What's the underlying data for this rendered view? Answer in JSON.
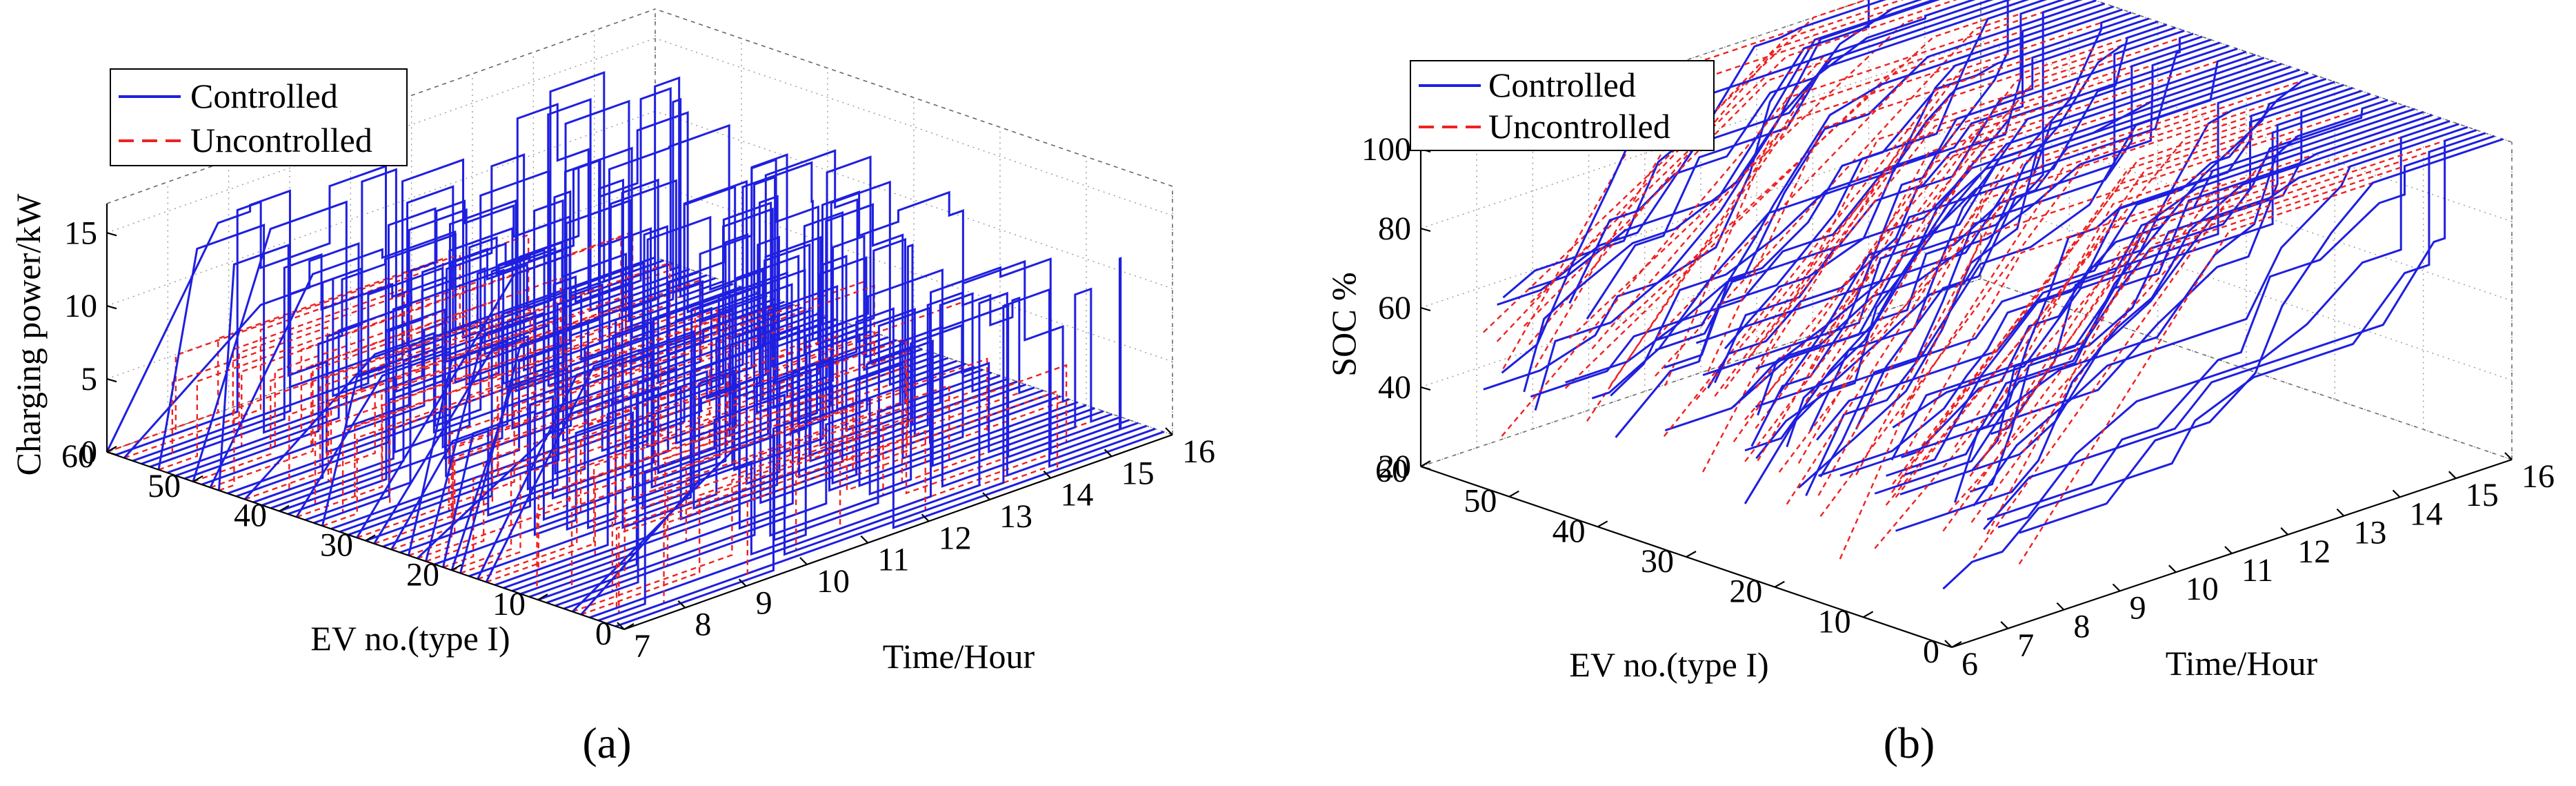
{
  "chart_data": [
    {
      "panel": "a",
      "type": "line",
      "subtype": "3d-waterfall",
      "caption": "(a)",
      "zlabel": "Charging power/kW",
      "xlabel": "EV no.(type I)",
      "ylabel": "Time/Hour",
      "ev_ticks": [
        "0",
        "10",
        "20",
        "30",
        "40",
        "50",
        "60"
      ],
      "time_ticks": [
        "7",
        "8",
        "9",
        "10",
        "11",
        "12",
        "13",
        "14",
        "15",
        "16"
      ],
      "z_ticks": [
        "0",
        "5",
        "10",
        "15"
      ],
      "ev_range": [
        0,
        60
      ],
      "time_range": [
        7,
        16
      ],
      "zlim": [
        0,
        17
      ],
      "legend": [
        "Controlled",
        "Uncontrolled"
      ],
      "legend_position": "top-left",
      "series_colors": {
        "Controlled": "#1f1fe0",
        "Uncontrolled": "#ee2222"
      },
      "series": [
        {
          "name": "Controlled",
          "style": "solid",
          "description": "Per-EV charging power profile under controlled charging; pulses of 5-15 kW at varying hours"
        },
        {
          "name": "Uncontrolled",
          "style": "dashed",
          "description": "Per-EV charging power profile under uncontrolled charging; constant ~5 kW blocks starting near arrival"
        }
      ]
    },
    {
      "panel": "b",
      "type": "line",
      "subtype": "3d-waterfall",
      "caption": "(b)",
      "zlabel": "SOC %",
      "xlabel": "EV no.(type I)",
      "ylabel": "Time/Hour",
      "ev_ticks": [
        "0",
        "10",
        "20",
        "30",
        "40",
        "50",
        "60"
      ],
      "time_ticks": [
        "6",
        "7",
        "8",
        "9",
        "10",
        "11",
        "12",
        "13",
        "14",
        "15",
        "16"
      ],
      "z_ticks": [
        "20",
        "40",
        "60",
        "80",
        "100"
      ],
      "ev_range": [
        0,
        60
      ],
      "time_range": [
        6,
        16
      ],
      "zlim": [
        20,
        100
      ],
      "legend": [
        "Controlled",
        "Uncontrolled"
      ],
      "legend_position": "top-left",
      "series_colors": {
        "Controlled": "#1f1fe0",
        "Uncontrolled": "#ee2222"
      },
      "series": [
        {
          "name": "Controlled",
          "style": "solid",
          "description": "Per-EV state of charge rising from 20-60% to 100% under controlled charging"
        },
        {
          "name": "Uncontrolled",
          "style": "dashed",
          "description": "Per-EV state of charge rising to 100% earlier under uncontrolled charging"
        }
      ]
    }
  ]
}
